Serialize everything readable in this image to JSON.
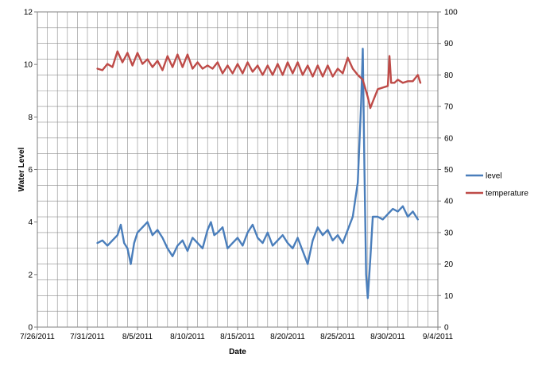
{
  "chart_data": {
    "type": "line",
    "title": "",
    "xlabel": "Date",
    "ylabel": "Water Level",
    "y2label": "",
    "x_range": [
      "7/26/2011",
      "9/4/2011"
    ],
    "x_tick_labels": [
      "7/26/2011",
      "7/31/2011",
      "8/5/2011",
      "8/10/2011",
      "8/15/2011",
      "8/20/2011",
      "8/25/2011",
      "8/30/2011",
      "9/4/2011"
    ],
    "ylim": [
      0,
      12
    ],
    "y_tick_labels": [
      "0",
      "2",
      "4",
      "6",
      "8",
      "10",
      "12"
    ],
    "y2lim": [
      0,
      100
    ],
    "y2_tick_labels": [
      "0",
      "10",
      "20",
      "30",
      "40",
      "50",
      "60",
      "70",
      "80",
      "90",
      "100"
    ],
    "grid": true,
    "legend_position": "right",
    "series": [
      {
        "name": "level",
        "axis": "left",
        "color": "#4a7ebb",
        "points": [
          [
            "8/1/2011",
            3.2
          ],
          [
            "8/1/2011 12:00",
            3.3
          ],
          [
            "8/2/2011",
            3.1
          ],
          [
            "8/2/2011 12:00",
            3.3
          ],
          [
            "8/3/2011",
            3.5
          ],
          [
            "8/3/2011 8:00",
            3.9
          ],
          [
            "8/3/2011 16:00",
            3.2
          ],
          [
            "8/4/2011",
            3.0
          ],
          [
            "8/4/2011 8:00",
            2.4
          ],
          [
            "8/4/2011 16:00",
            3.2
          ],
          [
            "8/5/2011",
            3.6
          ],
          [
            "8/5/2011 12:00",
            3.8
          ],
          [
            "8/6/2011",
            4.0
          ],
          [
            "8/6/2011 12:00",
            3.5
          ],
          [
            "8/7/2011",
            3.7
          ],
          [
            "8/7/2011 12:00",
            3.4
          ],
          [
            "8/8/2011",
            3.0
          ],
          [
            "8/8/2011 12:00",
            2.7
          ],
          [
            "8/9/2011",
            3.1
          ],
          [
            "8/9/2011 12:00",
            3.3
          ],
          [
            "8/10/2011",
            2.9
          ],
          [
            "8/10/2011 12:00",
            3.4
          ],
          [
            "8/11/2011",
            3.2
          ],
          [
            "8/11/2011 12:00",
            3.0
          ],
          [
            "8/12/2011",
            3.7
          ],
          [
            "8/12/2011 8:00",
            4.0
          ],
          [
            "8/12/2011 16:00",
            3.5
          ],
          [
            "8/13/2011",
            3.6
          ],
          [
            "8/13/2011 12:00",
            3.8
          ],
          [
            "8/14/2011",
            3.0
          ],
          [
            "8/14/2011 12:00",
            3.2
          ],
          [
            "8/15/2011",
            3.4
          ],
          [
            "8/15/2011 12:00",
            3.1
          ],
          [
            "8/16/2011",
            3.6
          ],
          [
            "8/16/2011 12:00",
            3.9
          ],
          [
            "8/17/2011",
            3.4
          ],
          [
            "8/17/2011 12:00",
            3.2
          ],
          [
            "8/18/2011",
            3.6
          ],
          [
            "8/18/2011 12:00",
            3.1
          ],
          [
            "8/19/2011",
            3.3
          ],
          [
            "8/19/2011 12:00",
            3.5
          ],
          [
            "8/20/2011",
            3.2
          ],
          [
            "8/20/2011 12:00",
            3.0
          ],
          [
            "8/21/2011",
            3.4
          ],
          [
            "8/21/2011 12:00",
            2.9
          ],
          [
            "8/22/2011",
            2.4
          ],
          [
            "8/22/2011 12:00",
            3.3
          ],
          [
            "8/23/2011",
            3.8
          ],
          [
            "8/23/2011 12:00",
            3.5
          ],
          [
            "8/24/2011",
            3.7
          ],
          [
            "8/24/2011 12:00",
            3.3
          ],
          [
            "8/25/2011",
            3.5
          ],
          [
            "8/25/2011 12:00",
            3.2
          ],
          [
            "8/26/2011",
            3.7
          ],
          [
            "8/26/2011 12:00",
            4.2
          ],
          [
            "8/27/2011",
            5.5
          ],
          [
            "8/27/2011 8:00",
            8.5
          ],
          [
            "8/27/2011 12:00",
            10.6
          ],
          [
            "8/27/2011 16:00",
            6.0
          ],
          [
            "8/27/2011 20:00",
            2.0
          ],
          [
            "8/28/2011",
            1.1
          ],
          [
            "8/28/2011 6:00",
            2.6
          ],
          [
            "8/28/2011 12:00",
            4.2
          ],
          [
            "8/29/2011",
            4.2
          ],
          [
            "8/29/2011 12:00",
            4.1
          ],
          [
            "8/30/2011",
            4.3
          ],
          [
            "8/30/2011 12:00",
            4.5
          ],
          [
            "8/31/2011",
            4.4
          ],
          [
            "8/31/2011 12:00",
            4.6
          ],
          [
            "9/1/2011",
            4.2
          ],
          [
            "9/1/2011 12:00",
            4.4
          ],
          [
            "9/2/2011",
            4.1
          ]
        ]
      },
      {
        "name": "temperature",
        "axis": "right",
        "color": "#be4b48",
        "points": [
          [
            "8/1/2011",
            82
          ],
          [
            "8/1/2011 12:00",
            81.5
          ],
          [
            "8/2/2011",
            83.5
          ],
          [
            "8/2/2011 12:00",
            82.5
          ],
          [
            "8/3/2011",
            87.5
          ],
          [
            "8/3/2011 12:00",
            84
          ],
          [
            "8/4/2011",
            87
          ],
          [
            "8/4/2011 12:00",
            83
          ],
          [
            "8/5/2011",
            87
          ],
          [
            "8/5/2011 12:00",
            83.5
          ],
          [
            "8/6/2011",
            85
          ],
          [
            "8/6/2011 12:00",
            82.5
          ],
          [
            "8/7/2011",
            84.5
          ],
          [
            "8/7/2011 12:00",
            81.5
          ],
          [
            "8/8/2011",
            86
          ],
          [
            "8/8/2011 12:00",
            82.5
          ],
          [
            "8/9/2011",
            86.5
          ],
          [
            "8/9/2011 12:00",
            82.5
          ],
          [
            "8/10/2011",
            86.5
          ],
          [
            "8/10/2011 12:00",
            82
          ],
          [
            "8/11/2011",
            84
          ],
          [
            "8/11/2011 12:00",
            82
          ],
          [
            "8/12/2011",
            83
          ],
          [
            "8/12/2011 12:00",
            82
          ],
          [
            "8/13/2011",
            84
          ],
          [
            "8/13/2011 12:00",
            80.5
          ],
          [
            "8/14/2011",
            83
          ],
          [
            "8/14/2011 12:00",
            80.5
          ],
          [
            "8/15/2011",
            83.5
          ],
          [
            "8/15/2011 12:00",
            80.5
          ],
          [
            "8/16/2011",
            84
          ],
          [
            "8/16/2011 12:00",
            81
          ],
          [
            "8/17/2011",
            83
          ],
          [
            "8/17/2011 12:00",
            80
          ],
          [
            "8/18/2011",
            83
          ],
          [
            "8/18/2011 12:00",
            80
          ],
          [
            "8/19/2011",
            83.5
          ],
          [
            "8/19/2011 12:00",
            80
          ],
          [
            "8/20/2011",
            84
          ],
          [
            "8/20/2011 12:00",
            80.5
          ],
          [
            "8/21/2011",
            84
          ],
          [
            "8/21/2011 12:00",
            80
          ],
          [
            "8/22/2011",
            83
          ],
          [
            "8/22/2011 12:00",
            79.5
          ],
          [
            "8/23/2011",
            83
          ],
          [
            "8/23/2011 12:00",
            79.5
          ],
          [
            "8/24/2011",
            83
          ],
          [
            "8/24/2011 12:00",
            79.5
          ],
          [
            "8/25/2011",
            82
          ],
          [
            "8/25/2011 12:00",
            80.5
          ],
          [
            "8/26/2011",
            85.5
          ],
          [
            "8/26/2011 12:00",
            82
          ],
          [
            "8/27/2011",
            80
          ],
          [
            "8/27/2011 12:00",
            78.5
          ],
          [
            "8/28/2011",
            73
          ],
          [
            "8/28/2011 6:00",
            69.5
          ],
          [
            "8/28/2011 12:00",
            71.5
          ],
          [
            "8/29/2011",
            75.5
          ],
          [
            "8/29/2011 12:00",
            76
          ],
          [
            "8/30/2011",
            76.5
          ],
          [
            "8/30/2011 4:00",
            86
          ],
          [
            "8/30/2011 8:00",
            77.5
          ],
          [
            "8/30/2011 16:00",
            77.5
          ],
          [
            "8/31/2011",
            78.5
          ],
          [
            "8/31/2011 12:00",
            77.5
          ],
          [
            "9/1/2011",
            78
          ],
          [
            "9/1/2011 12:00",
            78
          ],
          [
            "9/2/2011",
            80
          ],
          [
            "9/2/2011 6:00",
            77.5
          ]
        ]
      }
    ]
  }
}
